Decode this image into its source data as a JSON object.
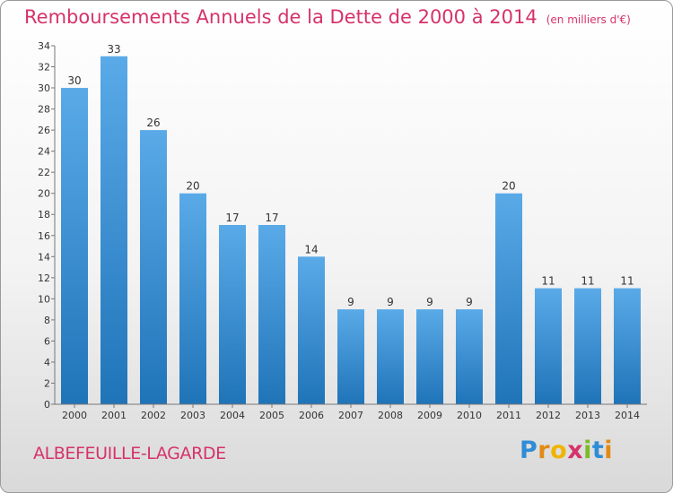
{
  "header": {
    "title": "Remboursements Annuels de la Dette de 2000 à 2014",
    "subtitle": "(en milliers d'€)"
  },
  "footer": {
    "commune": "ALBEFEUILLE-LAGARDE",
    "logo_letters": [
      "P",
      "r",
      "o",
      "x",
      "i",
      "t",
      "i"
    ],
    "logo_colors": [
      "#2f8dd6",
      "#e38a16",
      "#f0b400",
      "#d6326b",
      "#7cbb2a",
      "#2f8dd6",
      "#e38a16"
    ]
  },
  "colors": {
    "bar_top": "#5aaae8",
    "bar_bottom": "#1f74b8",
    "title": "#d6326b"
  },
  "chart_data": {
    "type": "bar",
    "categories": [
      "2000",
      "2001",
      "2002",
      "2003",
      "2004",
      "2005",
      "2006",
      "2007",
      "2008",
      "2009",
      "2010",
      "2011",
      "2012",
      "2013",
      "2014"
    ],
    "values": [
      30,
      33,
      26,
      20,
      17,
      17,
      14,
      9,
      9,
      9,
      9,
      20,
      11,
      11,
      11
    ],
    "ylim": [
      0,
      34
    ],
    "yticks": [
      0,
      2,
      4,
      6,
      8,
      10,
      12,
      14,
      16,
      18,
      20,
      22,
      24,
      26,
      28,
      30,
      32,
      34
    ],
    "grid": false,
    "data_labels": true
  }
}
